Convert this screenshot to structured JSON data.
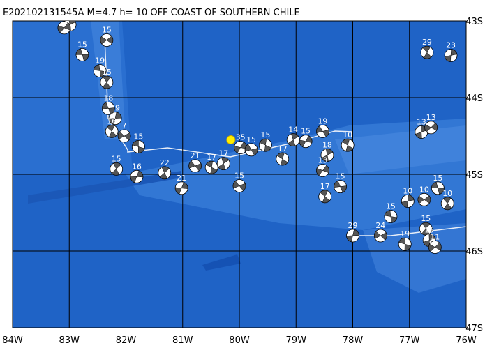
{
  "title": "E202102131545A M=4.7 h= 10 OFF COAST OF SOUTHERN CHILE",
  "epicenter": {
    "lon": -80.15,
    "lat": -44.55
  },
  "lon_grid": [
    {
      "value": -84,
      "label": "84W"
    },
    {
      "value": -83,
      "label": "83W"
    },
    {
      "value": -82,
      "label": "82W"
    },
    {
      "value": -81,
      "label": "81W"
    },
    {
      "value": -80,
      "label": "80W"
    },
    {
      "value": -79,
      "label": "79W"
    },
    {
      "value": -78,
      "label": "78W"
    },
    {
      "value": -77,
      "label": "77W"
    },
    {
      "value": -76,
      "label": "76W"
    }
  ],
  "lat_grid": [
    {
      "value": -43,
      "label": "43S"
    },
    {
      "value": -44,
      "label": "44S"
    },
    {
      "value": -45,
      "label": "45S"
    },
    {
      "value": -46,
      "label": "46S"
    },
    {
      "value": -47,
      "label": "47S"
    }
  ],
  "events": [
    {
      "label": "15",
      "lon": -82.77,
      "lat": -43.44
    },
    {
      "label": "29",
      "lon": -76.69,
      "lat": -43.41
    },
    {
      "label": "23",
      "lon": -76.27,
      "lat": -43.45
    },
    {
      "label": "15",
      "lon": -82.34,
      "lat": -43.25
    },
    {
      "label": "19",
      "lon": -82.46,
      "lat": -43.65
    },
    {
      "label": "15",
      "lon": -82.34,
      "lat": -43.8
    },
    {
      "label": "19",
      "lon": -82.19,
      "lat": -44.27
    },
    {
      "label": "7",
      "lon": -82.03,
      "lat": -44.5
    },
    {
      "label": "15",
      "lon": -81.78,
      "lat": -44.64
    },
    {
      "label": "15",
      "lon": -82.17,
      "lat": -44.93
    },
    {
      "label": "16",
      "lon": -81.81,
      "lat": -45.03
    },
    {
      "label": "15",
      "lon": -80.0,
      "lat": -45.15
    },
    {
      "label": "15",
      "lon": -79.54,
      "lat": -44.62
    },
    {
      "label": "14",
      "lon": -79.05,
      "lat": -44.55
    },
    {
      "label": "15",
      "lon": -78.83,
      "lat": -44.57
    },
    {
      "label": "19",
      "lon": -78.53,
      "lat": -44.44
    },
    {
      "label": "10",
      "lon": -78.09,
      "lat": -44.62
    },
    {
      "label": "18",
      "lon": -78.45,
      "lat": -44.75
    },
    {
      "label": "13",
      "lon": -78.53,
      "lat": -44.95
    },
    {
      "label": "15",
      "lon": -78.22,
      "lat": -45.16
    },
    {
      "label": "17",
      "lon": -78.49,
      "lat": -45.29
    },
    {
      "label": "13",
      "lon": -76.79,
      "lat": -44.45
    },
    {
      "label": "13",
      "lon": -76.62,
      "lat": -44.39
    },
    {
      "label": "15",
      "lon": -76.5,
      "lat": -45.18
    },
    {
      "label": "10",
      "lon": -76.33,
      "lat": -45.38
    },
    {
      "label": "10",
      "lon": -77.03,
      "lat": -45.35
    },
    {
      "label": "10",
      "lon": -76.74,
      "lat": -45.33
    },
    {
      "label": "15",
      "lon": -77.33,
      "lat": -45.55
    },
    {
      "label": "15",
      "lon": -76.71,
      "lat": -45.71
    },
    {
      "label": "29",
      "lon": -78.0,
      "lat": -45.8
    },
    {
      "label": "24",
      "lon": -77.51,
      "lat": -45.8
    },
    {
      "label": "19",
      "lon": -77.08,
      "lat": -45.91
    },
    {
      "label": "22",
      "lon": -81.32,
      "lat": -44.98
    },
    {
      "label": "21",
      "lon": -81.02,
      "lat": -45.18
    },
    {
      "label": "21",
      "lon": -80.78,
      "lat": -44.89
    },
    {
      "label": "17",
      "lon": -80.49,
      "lat": -44.91
    },
    {
      "label": "17",
      "lon": -80.28,
      "lat": -44.86
    },
    {
      "label": "35",
      "lon": -79.98,
      "lat": -44.65
    },
    {
      "label": "15",
      "lon": -79.79,
      "lat": -44.68
    },
    {
      "label": "17",
      "lon": -79.24,
      "lat": -44.8
    },
    {
      "label": "15",
      "lon": -82.99,
      "lat": -43.05
    },
    {
      "label": "14",
      "lon": -83.09,
      "lat": -43.09
    },
    {
      "label": "18",
      "lon": -82.31,
      "lat": -44.14
    },
    {
      "label": "16",
      "lon": -82.25,
      "lat": -44.44
    },
    {
      "label": "15",
      "lon": -76.65,
      "lat": -45.86
    },
    {
      "label": "11",
      "lon": -76.55,
      "lat": -45.95
    }
  ]
}
